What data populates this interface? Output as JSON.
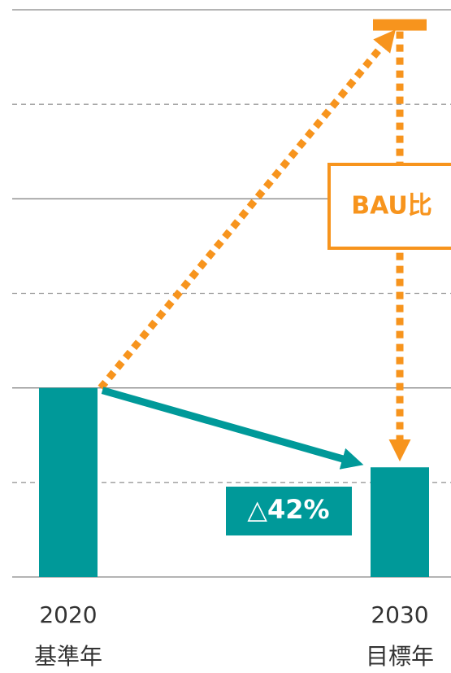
{
  "chart_data": {
    "type": "bar",
    "categories": [
      "2020",
      "2030"
    ],
    "category_sublabels": [
      "基準年",
      "目標年"
    ],
    "values": [
      2,
      1.16
    ],
    "color": "#009999",
    "bau_value": 5.84,
    "bau_color": "#f7941d",
    "bau_label": "BAU比",
    "reduction_label": "△42%",
    "ylim": [
      0,
      6
    ],
    "yticks": [
      0,
      1,
      2,
      3,
      4,
      5,
      6
    ],
    "grid": true
  }
}
